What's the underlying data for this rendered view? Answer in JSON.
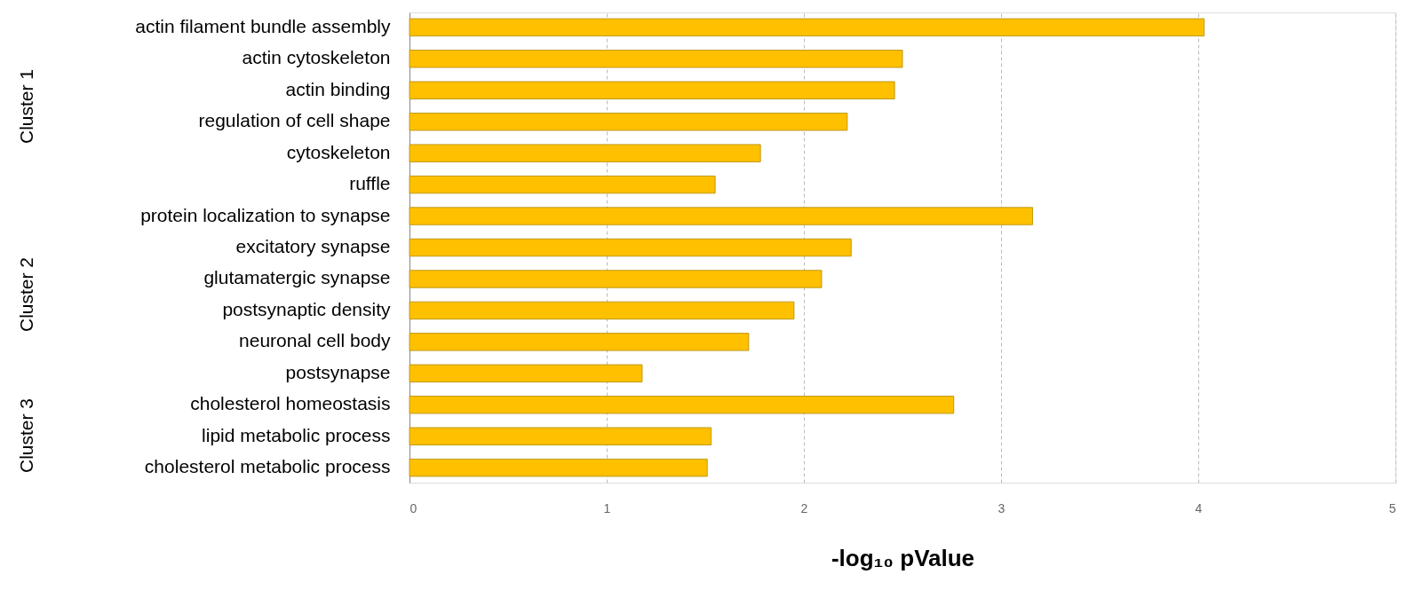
{
  "chart_data": {
    "type": "bar",
    "orientation": "horizontal",
    "xlabel": "-log₁₀ pValue",
    "categories": [
      "actin filament bundle assembly",
      "actin cytoskeleton",
      "actin binding",
      "regulation of cell shape",
      "cytoskeleton",
      "ruffle",
      "protein localization to synapse",
      "excitatory synapse",
      "glutamatergic synapse",
      "postsynaptic density",
      "neuronal cell body",
      "postsynapse",
      "cholesterol homeostasis",
      "lipid metabolic process",
      "cholesterol metabolic process"
    ],
    "values": [
      4.03,
      2.5,
      2.46,
      2.22,
      1.78,
      1.55,
      3.16,
      2.24,
      2.09,
      1.95,
      1.72,
      1.18,
      2.76,
      1.53,
      1.51
    ],
    "color": "#ffc000",
    "xlim": [
      0,
      5
    ],
    "xticks": [
      0,
      1,
      2,
      3,
      4,
      5
    ],
    "grid": "x",
    "annotations": [
      "Cluster 1",
      "Cluster 2",
      "Cluster 3"
    ]
  }
}
